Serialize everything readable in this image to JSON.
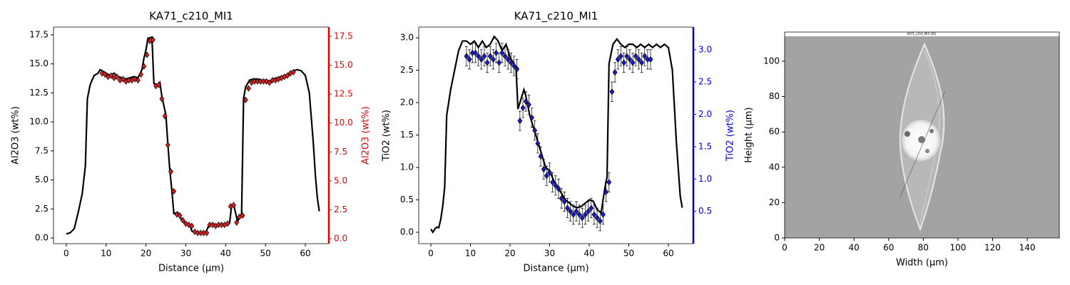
{
  "chart_data": [
    {
      "type": "line",
      "title": "KA71_c210_MI1",
      "xlabel": "Distance (µm)",
      "ylabel": "Al2O3 (wt%)",
      "y2label": "Al2O3 (wt%)",
      "y2_color": "#e00000",
      "xlim": [
        -3.2,
        65.9
      ],
      "ylim": [
        -0.49,
        18.17
      ],
      "y2lim": [
        -0.43,
        18.3
      ],
      "xticks": [
        0,
        10,
        20,
        30,
        40,
        50,
        60
      ],
      "yticks": [
        {
          "value": 0,
          "label": "0.0"
        },
        2.5,
        {
          "value": 5,
          "label": "5.0"
        },
        7.5,
        {
          "value": 10,
          "label": "10.0"
        },
        12.5,
        {
          "value": 15,
          "label": "15.0"
        },
        17.5
      ],
      "y2ticks": [
        {
          "value": 0,
          "label": "0.0"
        },
        2.5,
        {
          "value": 5,
          "label": "5.0"
        },
        7.5,
        {
          "value": 10,
          "label": "10.0"
        },
        12.5,
        {
          "value": 15,
          "label": "15.0"
        },
        17.5
      ],
      "series": [
        {
          "type": "line",
          "color": "#000000",
          "x": [
            0,
            1,
            2,
            3,
            4,
            4.8,
            5.3,
            6,
            7,
            8,
            8.5,
            9,
            10,
            11,
            12,
            13,
            14,
            15,
            16,
            17,
            18,
            19,
            19.5,
            20,
            20.5,
            21.5,
            22,
            23,
            23.5,
            24,
            25,
            25.5,
            26,
            26.5,
            27,
            28,
            29,
            30,
            31,
            31.5,
            32,
            33,
            34,
            35,
            36,
            37,
            38,
            39,
            40,
            41,
            41.5,
            42,
            43,
            43.5,
            44,
            44.5,
            45,
            46,
            47,
            48,
            49,
            50,
            51,
            52,
            53,
            54,
            55,
            56,
            57,
            58,
            59,
            60,
            61,
            62,
            62.5,
            63,
            63.5
          ],
          "values": [
            0.35,
            0.45,
            0.8,
            2.2,
            3.8,
            6.2,
            12.0,
            13.2,
            14.0,
            14.2,
            14.5,
            14.4,
            14.2,
            14.0,
            14.2,
            13.9,
            13.8,
            13.7,
            13.8,
            13.9,
            13.8,
            14.5,
            15.5,
            16.2,
            17.2,
            17.3,
            13.3,
            13.2,
            13.4,
            12.2,
            10.6,
            8.1,
            5.8,
            4.1,
            2.1,
            2.2,
            1.5,
            1.3,
            1.2,
            0.6,
            0.5,
            0.5,
            0.5,
            0.5,
            1.2,
            1.2,
            1.1,
            1.2,
            1.2,
            1.3,
            2.8,
            2.9,
            1.4,
            1.9,
            2.0,
            12.0,
            13.0,
            13.6,
            13.7,
            13.7,
            13.6,
            13.6,
            13.5,
            13.7,
            13.8,
            13.9,
            14.0,
            14.2,
            14.4,
            14.5,
            14.4,
            14.0,
            12.5,
            8.2,
            5.5,
            3.5,
            2.3
          ]
        },
        {
          "type": "scatter",
          "color": "#d62020",
          "axis": "y2",
          "x": [
            9,
            9.75,
            10.5,
            11.25,
            12,
            12.75,
            13.5,
            14.25,
            15,
            15.75,
            16.5,
            17.25,
            18,
            18.75,
            19.5,
            20.25,
            21,
            21.75,
            22.5,
            23.25,
            24,
            24.75,
            25.5,
            26.25,
            27,
            27.75,
            28.5,
            29.25,
            30,
            30.75,
            31.5,
            32.25,
            33,
            33.75,
            34.5,
            35.25,
            36,
            36.75,
            37.5,
            38.25,
            39,
            39.75,
            40.5,
            41.25,
            42,
            42.75,
            43.5,
            44.25,
            45,
            45.75,
            46.5,
            47.25,
            48,
            48.75,
            49.5,
            50.25,
            51,
            51.75,
            52.5,
            53.25,
            54,
            54.75,
            55.5,
            56.25,
            57
          ],
          "values": [
            14.3,
            14.2,
            14.0,
            14.1,
            13.9,
            14.0,
            13.7,
            13.8,
            13.6,
            13.7,
            13.7,
            13.8,
            13.7,
            14.2,
            14.9,
            15.9,
            17.1,
            17.2,
            13.2,
            13.3,
            12.1,
            10.6,
            8.1,
            5.8,
            4.1,
            2.1,
            2.0,
            1.6,
            1.3,
            1.2,
            1.1,
            0.6,
            0.5,
            0.5,
            0.5,
            0.5,
            1.2,
            1.2,
            1.1,
            1.2,
            1.2,
            1.2,
            1.3,
            2.8,
            2.9,
            1.4,
            1.9,
            2.0,
            12.0,
            13.0,
            13.5,
            13.6,
            13.6,
            13.6,
            13.6,
            13.6,
            13.5,
            13.7,
            13.7,
            13.8,
            13.9,
            14.0,
            14.1,
            14.3,
            14.4
          ]
        }
      ]
    },
    {
      "type": "line",
      "title": "KA71_c210_MI1",
      "xlabel": "Distance (µm)",
      "ylabel": "TiO2 (wt%)",
      "y2label": "TiO2 (wt%)",
      "y2_color": "#0000cc",
      "xlim": [
        -3.06,
        66.3
      ],
      "ylim": [
        -0.176,
        3.165
      ],
      "y2lim": [
        0.0,
        3.35
      ],
      "xticks": [
        0,
        10,
        20,
        30,
        40,
        50,
        60
      ],
      "yticks": [
        {
          "value": 0,
          "label": "0.0"
        },
        0.5,
        {
          "value": 1,
          "label": "1.0"
        },
        1.5,
        {
          "value": 2,
          "label": "2.0"
        },
        2.5,
        {
          "value": 3,
          "label": "3.0"
        }
      ],
      "y2ticks": [
        0.5,
        {
          "value": 1,
          "label": "1.0"
        },
        1.5,
        {
          "value": 2,
          "label": "2.0"
        },
        2.5,
        {
          "value": 3,
          "label": "3.0"
        }
      ],
      "series": [
        {
          "type": "line",
          "color": "#000000",
          "x": [
            0,
            0.5,
            1,
            1.5,
            2,
            2.5,
            3,
            3.5,
            4,
            5,
            6,
            7,
            8,
            9,
            10,
            11,
            12,
            13,
            14,
            15,
            16,
            17,
            18,
            19,
            20,
            21,
            21.5,
            22,
            23,
            23.5,
            24,
            25,
            26,
            27,
            28,
            29,
            30,
            31,
            32,
            33,
            34,
            35,
            36,
            37,
            38,
            39,
            40,
            41,
            42,
            43,
            44,
            44.5,
            45,
            46,
            47,
            48,
            49,
            50,
            51,
            52,
            53,
            54,
            55,
            56,
            57,
            58,
            59,
            60,
            61,
            62,
            63,
            63.5
          ],
          "values": [
            0.05,
            0.0,
            0.05,
            0.08,
            0.07,
            0.2,
            0.4,
            0.7,
            1.8,
            2.2,
            2.5,
            2.8,
            2.95,
            2.95,
            2.9,
            2.95,
            2.85,
            2.95,
            2.85,
            2.9,
            3.02,
            2.95,
            2.8,
            2.9,
            2.7,
            2.6,
            2.55,
            1.9,
            2.1,
            2.2,
            2.1,
            1.8,
            1.6,
            1.4,
            1.2,
            1.0,
            0.95,
            0.8,
            0.7,
            0.6,
            0.5,
            0.45,
            0.4,
            0.38,
            0.4,
            0.45,
            0.5,
            0.48,
            0.35,
            0.3,
            0.7,
            0.85,
            2.6,
            2.9,
            2.98,
            2.9,
            2.85,
            2.9,
            2.9,
            2.85,
            2.9,
            2.85,
            2.9,
            2.85,
            2.9,
            2.85,
            2.9,
            2.85,
            2.5,
            1.4,
            0.55,
            0.38
          ]
        },
        {
          "type": "scatter",
          "color": "#1a1acc",
          "axis": "y2",
          "x": [
            9,
            9.75,
            10.5,
            11.25,
            12,
            12.75,
            13.5,
            14.25,
            15,
            15.75,
            16.5,
            17.25,
            18,
            18.75,
            19.5,
            20.25,
            21,
            21.75,
            22.5,
            23.25,
            24,
            24.75,
            25.5,
            26.25,
            27,
            27.75,
            28.5,
            29.25,
            30,
            30.75,
            31.5,
            32.25,
            33,
            33.75,
            34.5,
            35.25,
            36,
            36.75,
            37.5,
            38.25,
            39,
            39.75,
            40.5,
            41.25,
            42,
            42.75,
            43.5,
            44.25,
            45,
            45.75,
            46.5,
            47.25,
            48,
            48.75,
            49.5,
            50.25,
            51,
            51.75,
            52.5,
            53.25,
            54,
            54.75,
            55.5
          ],
          "values": [
            2.9,
            2.85,
            2.95,
            2.95,
            2.9,
            2.85,
            2.9,
            2.8,
            2.9,
            2.85,
            2.95,
            2.8,
            2.95,
            2.9,
            2.85,
            2.8,
            2.75,
            2.7,
            1.9,
            2.1,
            2.2,
            2.15,
            1.95,
            1.75,
            1.55,
            1.35,
            1.15,
            1.05,
            1.1,
            0.95,
            0.9,
            0.85,
            0.7,
            0.65,
            0.55,
            0.5,
            0.45,
            0.5,
            0.45,
            0.4,
            0.45,
            0.5,
            0.55,
            0.45,
            0.4,
            0.35,
            0.45,
            0.8,
            0.95,
            2.35,
            2.65,
            2.85,
            2.9,
            2.8,
            2.9,
            2.85,
            2.8,
            2.9,
            2.85,
            2.8,
            2.9,
            2.85,
            2.85
          ],
          "errors": [
            0.15,
            0.15,
            0.15,
            0.15,
            0.15,
            0.15,
            0.15,
            0.15,
            0.15,
            0.15,
            0.15,
            0.15,
            0.15,
            0.15,
            0.15,
            0.15,
            0.15,
            0.15,
            0.15,
            0.15,
            0.15,
            0.15,
            0.15,
            0.15,
            0.15,
            0.15,
            0.15,
            0.15,
            0.15,
            0.15,
            0.15,
            0.15,
            0.15,
            0.15,
            0.15,
            0.15,
            0.15,
            0.15,
            0.15,
            0.15,
            0.15,
            0.15,
            0.15,
            0.15,
            0.15,
            0.15,
            0.15,
            0.15,
            0.15,
            0.15,
            0.15,
            0.15,
            0.15,
            0.15,
            0.15,
            0.15,
            0.15,
            0.15,
            0.15,
            0.15,
            0.15,
            0.15,
            0.15
          ]
        }
      ]
    },
    {
      "type": "image",
      "image_title": "KA71_c210_MI1 (SE)",
      "xlabel": "Width (µm)",
      "ylabel": "Height (µm)",
      "xlim": [
        0,
        158.5
      ],
      "ylim": [
        0,
        116.5
      ],
      "xticks": [
        0,
        20,
        40,
        60,
        80,
        100,
        120,
        140
      ],
      "yticks": [
        0,
        20,
        40,
        60,
        80,
        100
      ]
    }
  ]
}
